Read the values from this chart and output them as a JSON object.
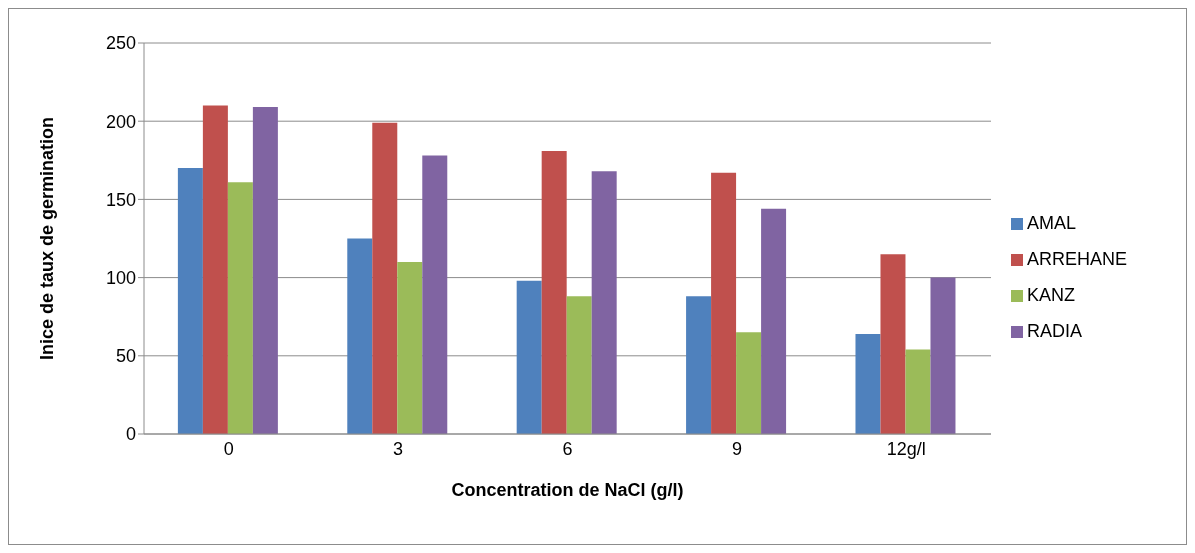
{
  "chart_data": {
    "type": "bar",
    "xlabel": "Concentration de NaCl (g/l)",
    "ylabel": "Inice de taux de germination",
    "categories": [
      "0",
      "3",
      "6",
      "9",
      "12g/l"
    ],
    "series": [
      {
        "name": "AMAL",
        "color": "#4f81bd",
        "values": [
          170,
          125,
          98,
          88,
          64
        ]
      },
      {
        "name": "ARREHANE",
        "color": "#c0504d",
        "values": [
          210,
          199,
          181,
          167,
          115
        ]
      },
      {
        "name": "KANZ",
        "color": "#9bbb59",
        "values": [
          161,
          110,
          88,
          65,
          54
        ]
      },
      {
        "name": "RADIA",
        "color": "#8064a2",
        "values": [
          209,
          178,
          168,
          144,
          100
        ]
      }
    ],
    "ylim": [
      0,
      250
    ],
    "yticks": [
      0,
      50,
      100,
      150,
      200,
      250
    ],
    "grid": "y",
    "legend": "right"
  }
}
